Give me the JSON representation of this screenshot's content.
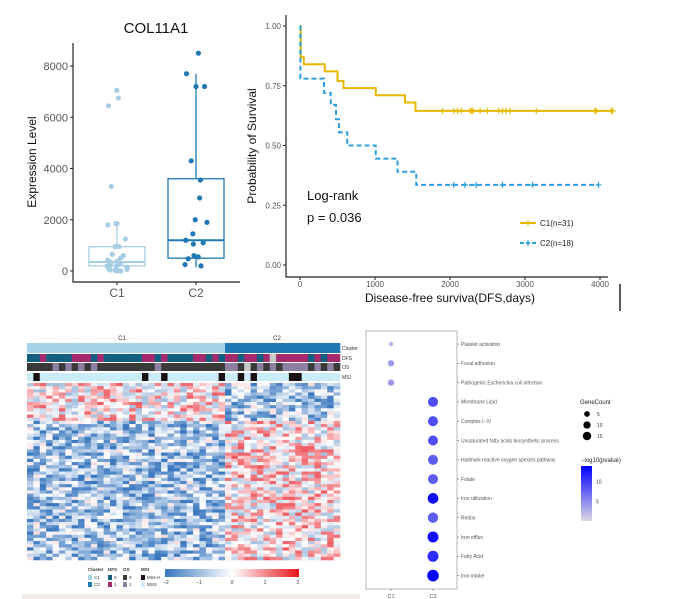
{
  "chart_data": [
    {
      "type": "box",
      "title": "COL11A1",
      "ylabel": "Expression Level",
      "xlabel": "",
      "categories": [
        "C1",
        "C2"
      ],
      "ylim": [
        -400,
        8800
      ],
      "yticks": [
        0,
        2000,
        4000,
        6000,
        8000
      ],
      "colors": [
        "#a6cee3",
        "#1f78b4"
      ],
      "boxes": [
        {
          "name": "C1",
          "min": 0,
          "q1": 200,
          "median": 350,
          "q3": 950,
          "max": 1850
        },
        {
          "name": "C2",
          "min": 150,
          "q1": 500,
          "median": 1200,
          "q3": 3600,
          "max": 7700
        }
      ],
      "points": [
        [
          7050,
          6750,
          6450,
          3300,
          1850,
          1850,
          1800,
          1250,
          950,
          950,
          650,
          600,
          500,
          420,
          380,
          330,
          300,
          280,
          250,
          230,
          200,
          190,
          150,
          120,
          100,
          80,
          60,
          40,
          20,
          10,
          0
        ],
        [
          8500,
          7700,
          7200,
          7200,
          4300,
          3550,
          2850,
          2000,
          1900,
          1450,
          1200,
          1100,
          1050,
          600,
          550,
          480,
          250,
          200
        ]
      ]
    },
    {
      "type": "line",
      "subtype": "kaplan-meier",
      "xlabel": "Disease-free surviva(DFS,days)",
      "ylabel": "Probability of Survival",
      "xlim": [
        -100,
        4200
      ],
      "ylim": [
        -0.04,
        1.04
      ],
      "xticks": [
        0,
        1000,
        2000,
        3000,
        4000
      ],
      "yticks": [
        "0.00",
        "0.25",
        "0.50",
        "0.75",
        "1.00"
      ],
      "annotation": [
        "Log-rank",
        "p = 0.036"
      ],
      "legend_position": "bottom-right",
      "series": [
        {
          "name": "C1(n=31)",
          "color": "#e7b800",
          "dashed": false,
          "steps": [
            [
              0,
              1.0
            ],
            [
              10,
              0.87
            ],
            [
              50,
              0.84
            ],
            [
              330,
              0.81
            ],
            [
              500,
              0.77
            ],
            [
              580,
              0.74
            ],
            [
              1010,
              0.71
            ],
            [
              1400,
              0.68
            ],
            [
              1540,
              0.645
            ],
            [
              4180,
              0.645
            ]
          ],
          "censored": [
            1900,
            2050,
            2100,
            2150,
            2270,
            2290,
            2310,
            2400,
            2500,
            2650,
            2700,
            2750,
            2800,
            3150,
            3930,
            3950,
            4150,
            4170
          ]
        },
        {
          "name": "C2(n=18)",
          "color": "#2e9fdf",
          "dashed": true,
          "steps": [
            [
              0,
              1.0
            ],
            [
              5,
              0.78
            ],
            [
              320,
              0.72
            ],
            [
              410,
              0.67
            ],
            [
              480,
              0.61
            ],
            [
              520,
              0.555
            ],
            [
              630,
              0.5
            ],
            [
              1010,
              0.445
            ],
            [
              1300,
              0.39
            ],
            [
              1550,
              0.335
            ],
            [
              3980,
              0.335
            ]
          ],
          "censored": [
            2050,
            2200,
            2350,
            2700,
            3100,
            3980
          ]
        }
      ]
    },
    {
      "type": "heatmap",
      "groups": [
        {
          "name": "C1",
          "n": 31
        },
        {
          "name": "C2",
          "n": 18
        }
      ],
      "track_labels": [
        "Cluster",
        "DFS",
        "OS",
        "MSI"
      ],
      "tracks": {
        "DFS": [
          0,
          0,
          1,
          0,
          0,
          0,
          0,
          1,
          1,
          1,
          0,
          1,
          0,
          0,
          0,
          0,
          0,
          0,
          1,
          1,
          0,
          1,
          0,
          0,
          0,
          0,
          1,
          1,
          0,
          1,
          0,
          1,
          1,
          0,
          1,
          1,
          0,
          1,
          2,
          1,
          1,
          1,
          1,
          1,
          0,
          1,
          0,
          1,
          1
        ],
        "OS": [
          0,
          0,
          0,
          0,
          1,
          0,
          1,
          0,
          1,
          0,
          1,
          0,
          0,
          0,
          0,
          0,
          0,
          0,
          0,
          0,
          1,
          0,
          0,
          0,
          0,
          0,
          0,
          0,
          0,
          0,
          0,
          1,
          1,
          0,
          2,
          0,
          1,
          0,
          1,
          0,
          1,
          1,
          1,
          1,
          0,
          1,
          0,
          1,
          0
        ],
        "MSI": [
          0,
          1,
          0,
          0,
          0,
          0,
          0,
          0,
          0,
          0,
          0,
          0,
          0,
          0,
          0,
          0,
          0,
          0,
          1,
          0,
          0,
          1,
          0,
          0,
          0,
          0,
          0,
          0,
          0,
          0,
          1,
          0,
          0,
          1,
          0,
          1,
          0,
          0,
          0,
          0,
          0,
          1,
          1,
          0,
          0,
          0,
          0,
          0,
          0
        ]
      },
      "track_colors": {
        "Cluster": [
          "#a6d3ea",
          "#1f78b4"
        ],
        "DFS": [
          "#11607f",
          "#a52a6d",
          "#c8c8c8"
        ],
        "OS": [
          "#3a3a3a",
          "#8e7fa3",
          "#c8c8c8"
        ],
        "MSI": [
          "#c8ecf8",
          "#1a1015"
        ]
      },
      "legend": {
        "Cluster": {
          "title": "Cluster",
          "items": [
            "C1",
            "C2"
          ]
        },
        "DFS": {
          "title": "DFS",
          "items": [
            "0",
            "1"
          ]
        },
        "OS": {
          "title": "OS",
          "items": [
            "0",
            "1"
          ]
        },
        "MSI": {
          "title": "MSI",
          "items": [
            "MSI-H",
            "MSS"
          ]
        }
      },
      "color_scale": {
        "min": -2,
        "max": 2,
        "ticks": [
          "−2",
          "−1",
          "0",
          "1",
          "2"
        ],
        "colors": [
          "#3a78c0",
          "#ffffff",
          "#e8131b"
        ]
      },
      "rows": 56
    },
    {
      "type": "scatter",
      "subtype": "dotplot",
      "categories": [
        "C1",
        "C2"
      ],
      "terms": [
        {
          "term": "Platelet activation",
          "cluster": "C1",
          "count": 1,
          "neglog10p": 2
        },
        {
          "term": "Focal adhesion",
          "cluster": "C1",
          "count": 3,
          "neglog10p": 4
        },
        {
          "term": "Pathogenic Escherichia coli infection",
          "cluster": "C1",
          "count": 3,
          "neglog10p": 4
        },
        {
          "term": "Membrane Lipid",
          "cluster": "C2",
          "count": 11,
          "neglog10p": 9
        },
        {
          "term": "Complex I−IV",
          "cluster": "C2",
          "count": 11,
          "neglog10p": 9
        },
        {
          "term": "Unsaturated fatty acids biosynthetic process",
          "cluster": "C2",
          "count": 11,
          "neglog10p": 9
        },
        {
          "term": "Hallmark reactive oxygen species pathway",
          "cluster": "C2",
          "count": 11,
          "neglog10p": 8
        },
        {
          "term": "Folate",
          "cluster": "C2",
          "count": 11,
          "neglog10p": 8
        },
        {
          "term": "Iron utilization",
          "cluster": "C2",
          "count": 13,
          "neglog10p": 13
        },
        {
          "term": "Redox",
          "cluster": "C2",
          "count": 12,
          "neglog10p": 8
        },
        {
          "term": "Iron efflux",
          "cluster": "C2",
          "count": 14,
          "neglog10p": 13
        },
        {
          "term": "Fatty Acid",
          "cluster": "C2",
          "count": 14,
          "neglog10p": 11
        },
        {
          "term": "Iron intake",
          "cluster": "C2",
          "count": 16,
          "neglog10p": 14
        }
      ],
      "size_legend": {
        "title": "GeneCount",
        "values": [
          5,
          10,
          15
        ],
        "labels": [
          "5",
          "10",
          "15"
        ]
      },
      "color_legend": {
        "title": "−log10(pvalue)",
        "ticks": [
          5,
          10
        ],
        "labels": [
          "5",
          "10"
        ],
        "range": [
          0,
          14
        ],
        "low": "#dcd8e4",
        "high": "#0000ff"
      }
    }
  ]
}
